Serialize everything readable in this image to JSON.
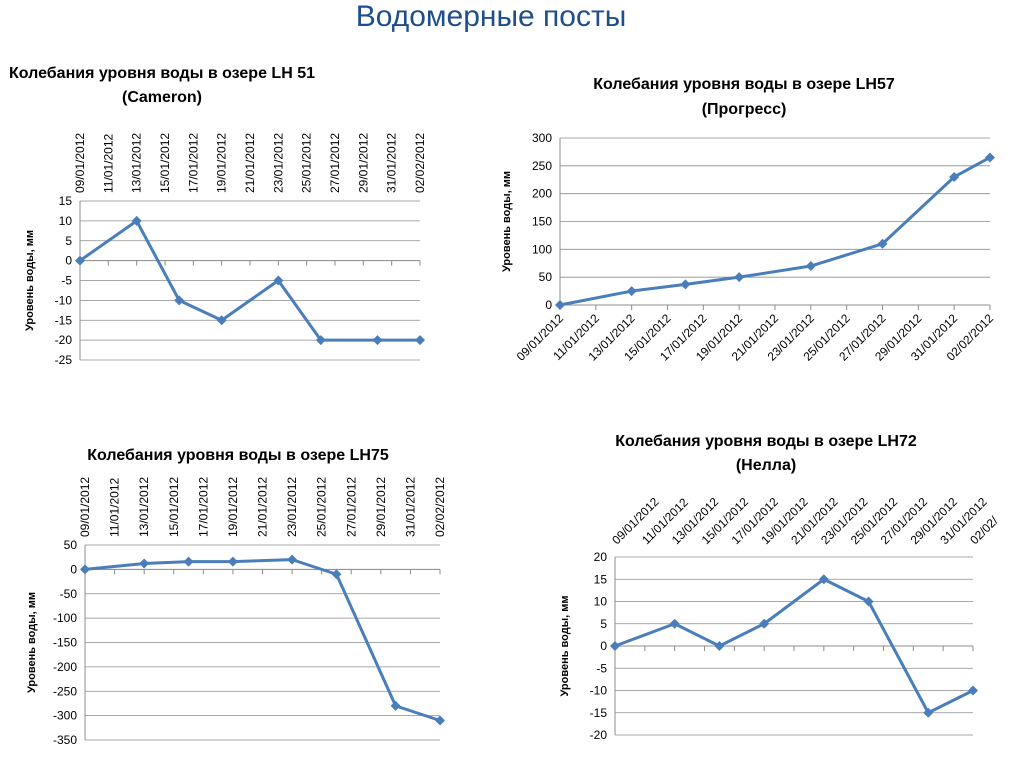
{
  "page": {
    "title": "Водомерные посты"
  },
  "chart_data": [
    {
      "type": "line",
      "title_lines": [
        "Колебания уровня воды в озере LH 51",
        "(Cameron)"
      ],
      "ylabel": "Уровень воды, мм",
      "ylim": [
        -25,
        15
      ],
      "ystep": 5,
      "x_ticks": [
        "09/01/2012",
        "11/01/2012",
        "13/01/2012",
        "15/01/2012",
        "17/01/2012",
        "19/01/2012",
        "21/01/2012",
        "23/01/2012",
        "25/01/2012",
        "27/01/2012",
        "29/01/2012",
        "31/01/2012",
        "02/02/2012"
      ],
      "x_ticks_position": "top",
      "x_range": [
        "2012-01-09",
        "2012-02-02"
      ],
      "points": [
        {
          "x": "2012-01-09",
          "y": 0
        },
        {
          "x": "2012-01-13",
          "y": 10
        },
        {
          "x": "2012-01-16",
          "y": -10
        },
        {
          "x": "2012-01-19",
          "y": -15
        },
        {
          "x": "2012-01-23",
          "y": -5
        },
        {
          "x": "2012-01-26",
          "y": -20
        },
        {
          "x": "2012-01-30",
          "y": -20
        },
        {
          "x": "2012-02-02",
          "y": -20
        }
      ],
      "grid": true,
      "color": "#4a7ebb"
    },
    {
      "type": "line",
      "title_lines": [
        "Колебания уровня воды в озере LH57",
        "(Прогресс)"
      ],
      "ylabel": "Уровень воды, мм",
      "ylim": [
        0,
        300
      ],
      "ystep": 50,
      "x_ticks": [
        "09/01/2012",
        "11/01/2012",
        "13/01/2012",
        "15/01/2012",
        "17/01/2012",
        "19/01/2012",
        "21/01/2012",
        "23/01/2012",
        "25/01/2012",
        "27/01/2012",
        "29/01/2012",
        "31/01/2012",
        "02/02/2012"
      ],
      "x_ticks_position": "bottom",
      "x_range": [
        "2012-01-09",
        "2012-02-02"
      ],
      "points": [
        {
          "x": "2012-01-09",
          "y": 0
        },
        {
          "x": "2012-01-13",
          "y": 25
        },
        {
          "x": "2012-01-16",
          "y": 37
        },
        {
          "x": "2012-01-19",
          "y": 50
        },
        {
          "x": "2012-01-23",
          "y": 70
        },
        {
          "x": "2012-01-27",
          "y": 110
        },
        {
          "x": "2012-01-31",
          "y": 230
        },
        {
          "x": "2012-02-02",
          "y": 265
        }
      ],
      "grid": true,
      "color": "#4a7ebb"
    },
    {
      "type": "line",
      "title_lines": [
        "Колебания уровня воды в озере LH75"
      ],
      "ylabel": "Уровень воды, мм",
      "ylim": [
        -350,
        50
      ],
      "ystep": 50,
      "x_ticks": [
        "09/01/2012",
        "11/01/2012",
        "13/01/2012",
        "15/01/2012",
        "17/01/2012",
        "19/01/2012",
        "21/01/2012",
        "23/01/2012",
        "25/01/2012",
        "27/01/2012",
        "29/01/2012",
        "31/01/2012",
        "02/02/2012"
      ],
      "x_ticks_position": "top",
      "x_range": [
        "2012-01-09",
        "2012-02-02"
      ],
      "points": [
        {
          "x": "2012-01-09",
          "y": 0
        },
        {
          "x": "2012-01-13",
          "y": 12
        },
        {
          "x": "2012-01-16",
          "y": 16
        },
        {
          "x": "2012-01-19",
          "y": 16
        },
        {
          "x": "2012-01-23",
          "y": 20
        },
        {
          "x": "2012-01-26",
          "y": -10
        },
        {
          "x": "2012-01-30",
          "y": -280
        },
        {
          "x": "2012-02-02",
          "y": -310
        }
      ],
      "grid": true,
      "color": "#4a7ebb"
    },
    {
      "type": "line",
      "title_lines": [
        "Колебания уровня воды в озере LH72",
        "(Нелла)"
      ],
      "ylabel": "Уровень воды, мм",
      "ylim": [
        -20,
        20
      ],
      "ystep": 5,
      "x_ticks": [
        "09/01/2012",
        "11/01/2012",
        "13/01/2012",
        "15/01/2012",
        "17/01/2012",
        "19/01/2012",
        "21/01/2012",
        "23/01/2012",
        "25/01/2012",
        "27/01/2012",
        "29/01/2012",
        "31/01/2012",
        "02/02/"
      ],
      "x_ticks_position": "top",
      "x_range": [
        "2012-01-09",
        "2012-02-02"
      ],
      "points": [
        {
          "x": "2012-01-09",
          "y": 0
        },
        {
          "x": "2012-01-13",
          "y": 5
        },
        {
          "x": "2012-01-16",
          "y": 0
        },
        {
          "x": "2012-01-19",
          "y": 5
        },
        {
          "x": "2012-01-23",
          "y": 15
        },
        {
          "x": "2012-01-26",
          "y": 10
        },
        {
          "x": "2012-01-30",
          "y": -15
        },
        {
          "x": "2012-02-02",
          "y": -10
        }
      ],
      "grid": true,
      "color": "#4a7ebb"
    }
  ]
}
